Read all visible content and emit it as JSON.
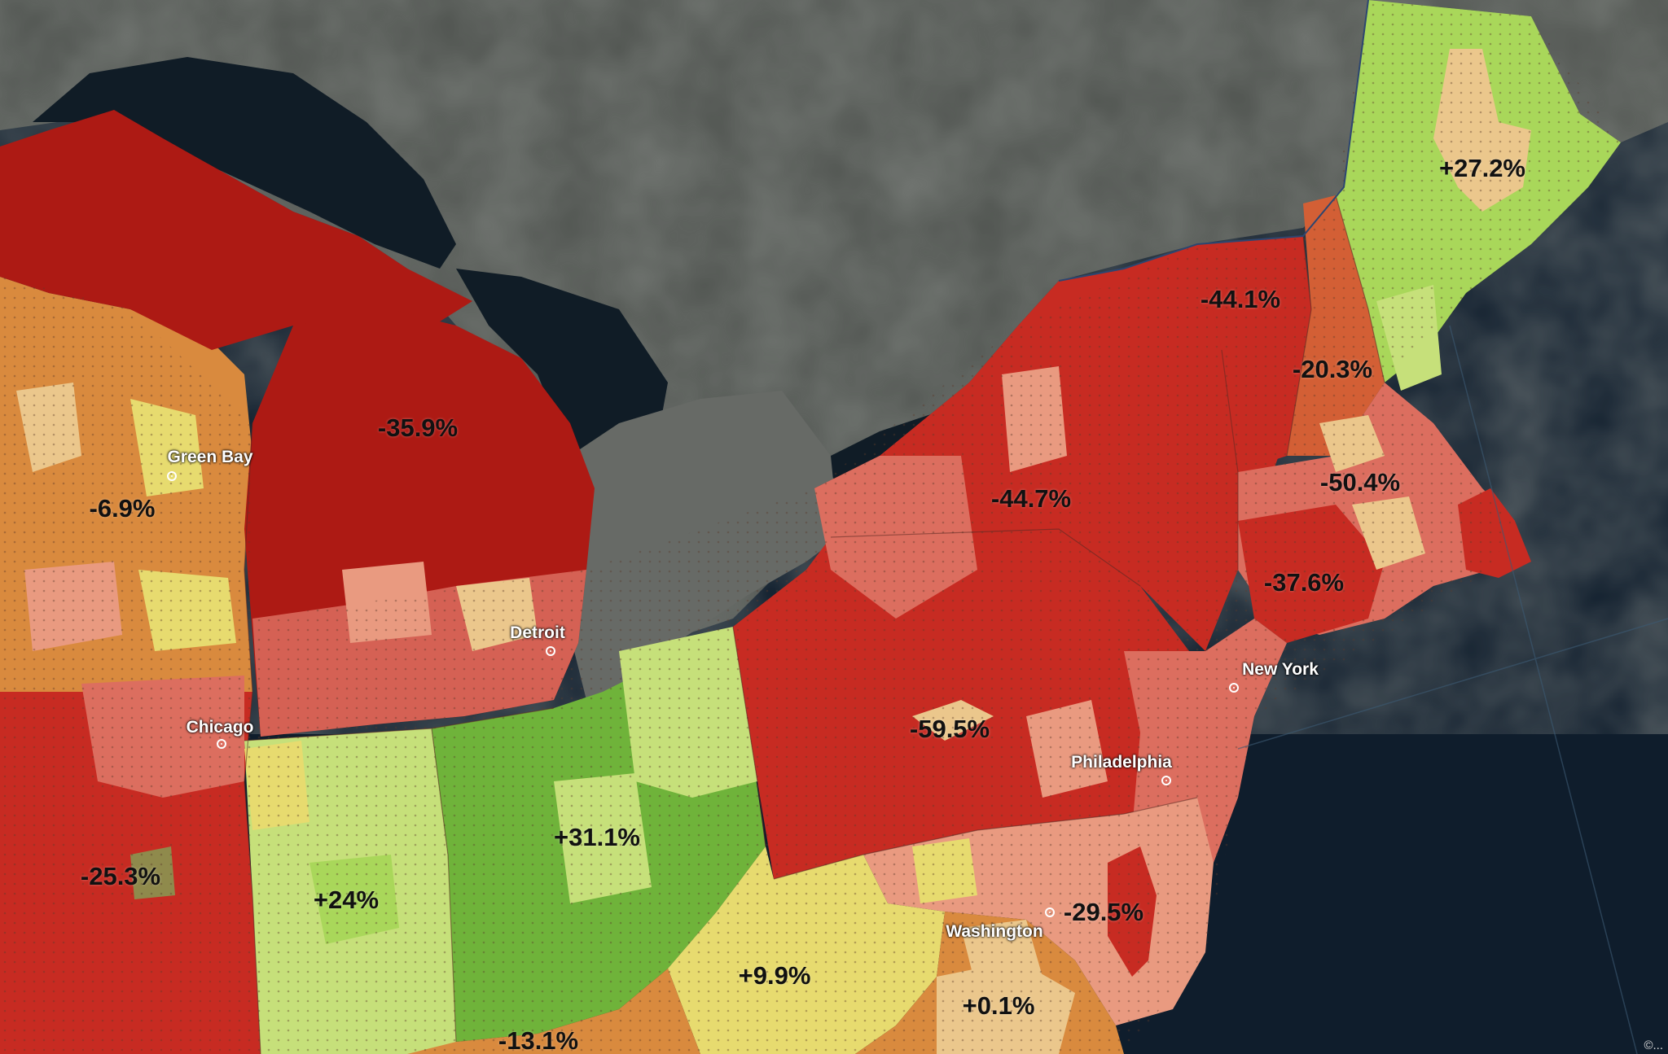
{
  "map": {
    "colors": {
      "water": "#0f1d2c",
      "land": "#4b4e4b",
      "deep_red": "#ad1a14",
      "red": "#c72b22",
      "light_red": "#dc6e5f",
      "salmon": "#e99a80",
      "orange": "#d98a3e",
      "tan": "#ebc78c",
      "yellow": "#e7db6f",
      "light_green": "#c6e07a",
      "green": "#6fb33a",
      "lime": "#a9d75a"
    },
    "region_labels": [
      {
        "id": "maine",
        "text": "+27.2%"
      },
      {
        "id": "vermont-nh",
        "text": "-44.1%"
      },
      {
        "id": "new-hampshire",
        "text": "-20.3%"
      },
      {
        "id": "massachusetts",
        "text": "-50.4%"
      },
      {
        "id": "upstate-ny",
        "text": "-44.7%"
      },
      {
        "id": "connecticut",
        "text": "-37.6%"
      },
      {
        "id": "michigan",
        "text": "-35.9%"
      },
      {
        "id": "wisconsin",
        "text": "-6.9%"
      },
      {
        "id": "pennsylvania",
        "text": "-59.5%"
      },
      {
        "id": "ohio",
        "text": "+31.1%"
      },
      {
        "id": "indiana",
        "text": "+24%"
      },
      {
        "id": "illinois",
        "text": "-25.3%"
      },
      {
        "id": "west-virginia",
        "text": "+9.9%"
      },
      {
        "id": "maryland",
        "text": "-29.5%"
      },
      {
        "id": "virginia",
        "text": "+0.1%"
      },
      {
        "id": "kentucky",
        "text": "-13.1%"
      }
    ],
    "cities": [
      {
        "id": "green-bay",
        "name": "Green Bay"
      },
      {
        "id": "detroit",
        "name": "Detroit"
      },
      {
        "id": "chicago",
        "name": "Chicago"
      },
      {
        "id": "new-york",
        "name": "New York"
      },
      {
        "id": "philadelphia",
        "name": "Philadelphia"
      },
      {
        "id": "washington",
        "name": "Washington"
      }
    ],
    "attribution": "©..."
  }
}
